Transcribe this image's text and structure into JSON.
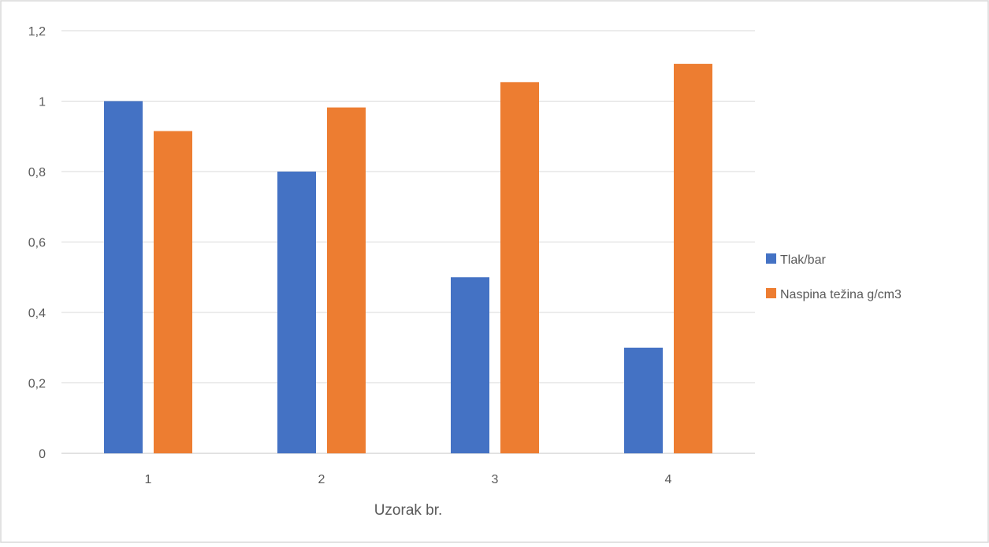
{
  "chart_data": {
    "type": "bar",
    "categories": [
      "1",
      "2",
      "3",
      "4"
    ],
    "series": [
      {
        "name": "Tlak/bar",
        "values": [
          1.0,
          0.8,
          0.5,
          0.3
        ],
        "color": "#4472C4"
      },
      {
        "name": "Naspina težina g/cm3",
        "values": [
          0.915,
          0.982,
          1.054,
          1.106
        ],
        "color": "#ED7D31"
      }
    ],
    "title": "",
    "xlabel": "Uzorak br.",
    "ylabel": "",
    "ylim": [
      0,
      1.2
    ],
    "yticks": [
      "0",
      "0,2",
      "0,4",
      "0,6",
      "0,8",
      "1",
      "1,2"
    ],
    "ytick_values": [
      0,
      0.2,
      0.4,
      0.6,
      0.8,
      1.0,
      1.2
    ],
    "grid": true,
    "legend": "right"
  },
  "colors": {
    "gridline": "#d9d9d9",
    "axis_line": "#d9d9d9",
    "text": "#595959",
    "border": "#d9d9d9"
  }
}
